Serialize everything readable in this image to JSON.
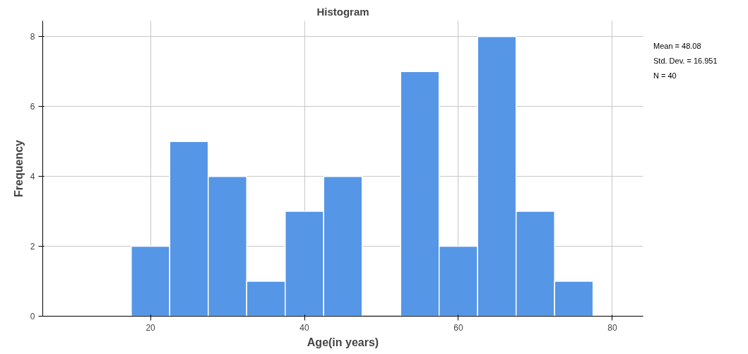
{
  "chart_data": {
    "type": "histogram",
    "title": "Histogram",
    "xlabel": "Age(in years)",
    "ylabel": "Frequency",
    "bins": [
      17.5,
      22.5,
      27.5,
      32.5,
      37.5,
      42.5,
      47.5,
      52.5,
      57.5,
      62.5,
      67.5,
      72.5,
      77.5
    ],
    "values": [
      2,
      5,
      4,
      1,
      3,
      4,
      0,
      7,
      2,
      8,
      3,
      1
    ],
    "color": "#5596e6",
    "xlim": [
      6,
      84
    ],
    "xticks": [
      20,
      40,
      60,
      80
    ],
    "ylim": [
      0,
      8.45
    ],
    "yticks": [
      0,
      2,
      4,
      6,
      8
    ],
    "grid": true,
    "annotations": [
      "Mean = 48.08",
      "Std. Dev. = 16.951",
      "N = 40"
    ]
  }
}
